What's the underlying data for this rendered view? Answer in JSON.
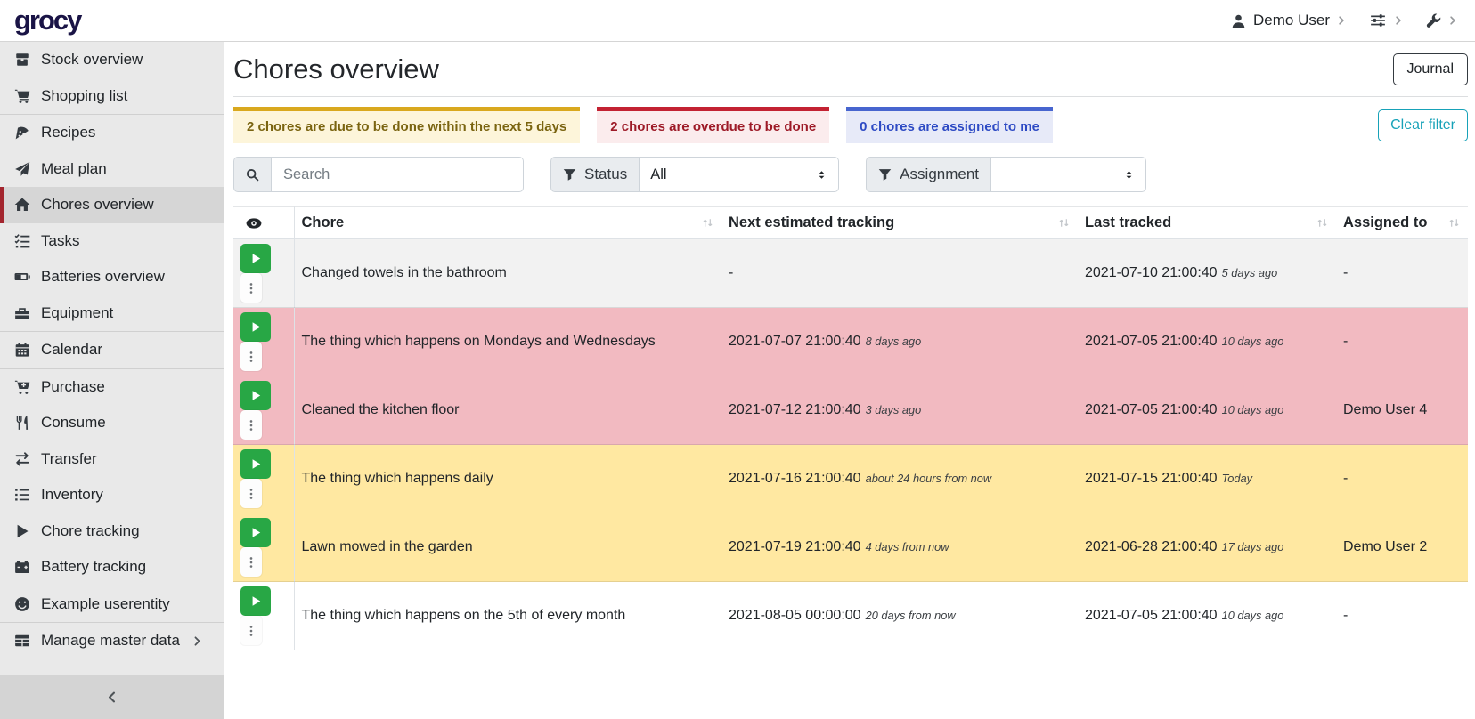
{
  "navbar": {
    "logo": "grocy",
    "user": {
      "label": "Demo User",
      "icon": "user-icon"
    },
    "settings_icon": "sliders-icon",
    "admin_icon": "wrench-icon"
  },
  "sidebar": {
    "groups": [
      {
        "items": [
          {
            "label": "Stock overview",
            "icon": "boxes-icon"
          },
          {
            "label": "Shopping list",
            "icon": "shopping-cart-icon"
          }
        ]
      },
      {
        "items": [
          {
            "label": "Recipes",
            "icon": "pizza-slice-icon"
          },
          {
            "label": "Meal plan",
            "icon": "paper-plane-icon"
          },
          {
            "label": "Chores overview",
            "icon": "home-icon",
            "active": true
          },
          {
            "label": "Tasks",
            "icon": "tasks-icon"
          },
          {
            "label": "Batteries overview",
            "icon": "battery-icon"
          },
          {
            "label": "Equipment",
            "icon": "toolbox-icon"
          }
        ]
      },
      {
        "items": [
          {
            "label": "Calendar",
            "icon": "calendar-icon"
          }
        ]
      },
      {
        "items": [
          {
            "label": "Purchase",
            "icon": "cart-plus-icon"
          },
          {
            "label": "Consume",
            "icon": "utensils-icon"
          },
          {
            "label": "Transfer",
            "icon": "exchange-icon"
          },
          {
            "label": "Inventory",
            "icon": "list-icon"
          },
          {
            "label": "Chore tracking",
            "icon": "play-icon"
          },
          {
            "label": "Battery tracking",
            "icon": "car-battery-icon"
          }
        ]
      },
      {
        "items": [
          {
            "label": "Example userentity",
            "icon": "smiley-icon"
          }
        ]
      },
      {
        "items": [
          {
            "label": "Manage master data",
            "icon": "table-icon",
            "has_submenu": true
          }
        ]
      }
    ]
  },
  "header": {
    "title": "Chores overview",
    "journal_button": "Journal"
  },
  "filters": {
    "cards": [
      {
        "key": "due-soon",
        "text": "2 chores are due to be done within the next 5 days",
        "border": "#d9a81e",
        "bg": "#fdf5da",
        "fg": "#7a6410"
      },
      {
        "key": "overdue",
        "text": "2 chores are overdue to be done",
        "border": "#c32232",
        "bg": "#fbeced",
        "fg": "#9d1a27"
      },
      {
        "key": "assigned-to-me",
        "text": "0 chores are assigned to me",
        "border": "#4765cf",
        "bg": "#e7eaf8",
        "fg": "#2d4ac4"
      }
    ],
    "clear_button": "Clear filter",
    "search_placeholder": "Search",
    "status_label": "Status",
    "status_value": "All",
    "assignment_label": "Assignment",
    "assignment_value": ""
  },
  "table": {
    "icon_column_icon": "eye-icon",
    "columns": [
      "Chore",
      "Next estimated tracking",
      "Last tracked",
      "Assigned to"
    ],
    "rows": [
      {
        "chore": "Changed towels in the bathroom",
        "next": "-",
        "next_rel": "",
        "last": "2021-07-10 21:00:40",
        "last_rel": "5 days ago",
        "assigned": "-",
        "highlight": "stripe"
      },
      {
        "chore": "The thing which happens on Mondays and Wednesdays",
        "next": "2021-07-07 21:00:40",
        "next_rel": "8 days ago",
        "last": "2021-07-05 21:00:40",
        "last_rel": "10 days ago",
        "assigned": "-",
        "highlight": "danger"
      },
      {
        "chore": "Cleaned the kitchen floor",
        "next": "2021-07-12 21:00:40",
        "next_rel": "3 days ago",
        "last": "2021-07-05 21:00:40",
        "last_rel": "10 days ago",
        "assigned": "Demo User 4",
        "highlight": "danger"
      },
      {
        "chore": "The thing which happens daily",
        "next": "2021-07-16 21:00:40",
        "next_rel": "about 24 hours from now",
        "last": "2021-07-15 21:00:40",
        "last_rel": "Today",
        "assigned": "-",
        "highlight": "warning"
      },
      {
        "chore": "Lawn mowed in the garden",
        "next": "2021-07-19 21:00:40",
        "next_rel": "4 days from now",
        "last": "2021-06-28 21:00:40",
        "last_rel": "17 days ago",
        "assigned": "Demo User 2",
        "highlight": "warning"
      },
      {
        "chore": "The thing which happens on the 5th of every month",
        "next": "2021-08-05 00:00:00",
        "next_rel": "20 days from now",
        "last": "2021-07-05 21:00:40",
        "last_rel": "10 days ago",
        "assigned": "-",
        "highlight": "none"
      }
    ]
  },
  "colors": {
    "brand": "#1a1446",
    "active_accent": "#a3252e",
    "success_green": "#28a745",
    "info_teal": "#17a2b8",
    "row_danger": "#f2bac1",
    "row_warning": "#ffe8a1",
    "row_stripe": "#f2f2f2"
  }
}
